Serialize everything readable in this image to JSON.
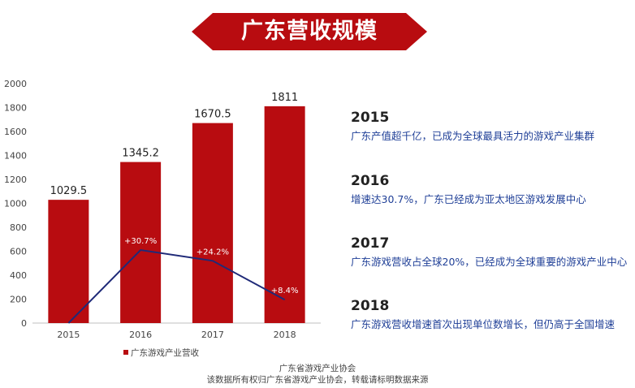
{
  "banner": {
    "title": "广东营收规模",
    "color": "#b80c10"
  },
  "chart_data": {
    "type": "bar",
    "categories": [
      "2015",
      "2016",
      "2017",
      "2018"
    ],
    "series": [
      {
        "name": "广东游戏产业营收",
        "values": [
          1029.5,
          1345.2,
          1670.5,
          1811
        ],
        "color": "#b80c10"
      }
    ],
    "value_labels": [
      "1029.5",
      "1345.2",
      "1670.5",
      "1811"
    ],
    "growth_line": {
      "values": [
        0,
        610,
        520,
        195
      ],
      "labels": [
        "",
        "+30.7%",
        "+24.2%",
        "+8.4%"
      ],
      "color": "#1f2a78"
    },
    "ylim": [
      0,
      2000
    ],
    "yticks": [
      0,
      200,
      400,
      600,
      800,
      1000,
      1200,
      1400,
      1600,
      1800,
      2000
    ],
    "legend_label": "广东游戏产业营收",
    "legend_position": "bottom-left",
    "grid": false
  },
  "descriptions": [
    {
      "year": "2015",
      "text": "广东产值超千亿，已成为全球最具活力的游戏产业集群"
    },
    {
      "year": "2016",
      "text": "增速达30.7%，广东已经成为亚太地区游戏发展中心"
    },
    {
      "year": "2017",
      "text": "广东游戏营收占全球20%，已经成为全球重要的游戏产业中心"
    },
    {
      "year": "2018",
      "text": "广东游戏营收增速首次出现单位数增长，但仍高于全国增速"
    }
  ],
  "footer": {
    "line1": "广东省游戏产业协会",
    "line2": "该数据所有权归广东省游戏产业协会，转载请标明数据来源"
  }
}
